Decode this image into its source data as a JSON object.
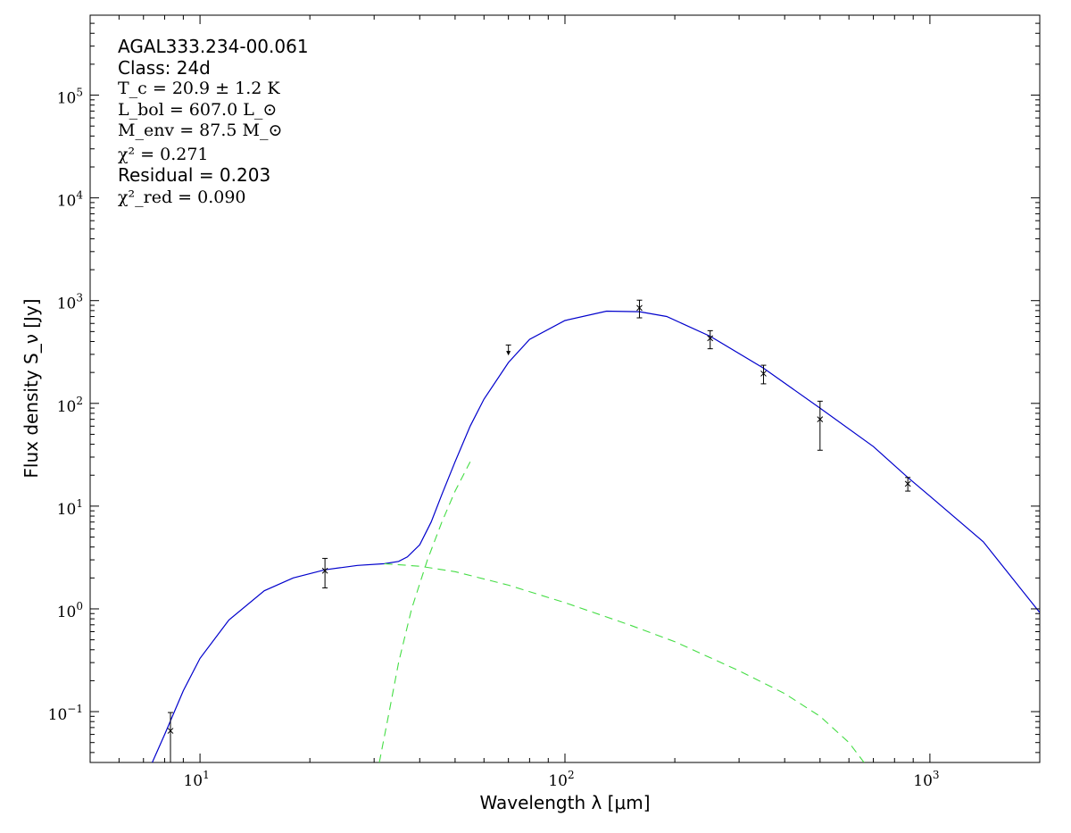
{
  "chart_data": {
    "type": "line",
    "title": "",
    "xlabel": "Wavelength λ [μm]",
    "ylabel": "Flux density S_ν [Jy]",
    "xscale": "log",
    "yscale": "log",
    "xlim": [
      5.0,
      2000.0
    ],
    "ylim": [
      0.032,
      600000
    ],
    "grid": false,
    "legend": "none",
    "x_ticks": [
      {
        "value": 10,
        "base": "10",
        "exp": "1"
      },
      {
        "value": 100,
        "base": "10",
        "exp": "2"
      },
      {
        "value": 1000,
        "base": "10",
        "exp": "3"
      }
    ],
    "y_ticks": [
      {
        "value": 0.1,
        "base": "10",
        "exp": "−1"
      },
      {
        "value": 1,
        "base": "10",
        "exp": "0"
      },
      {
        "value": 10,
        "base": "10",
        "exp": "1"
      },
      {
        "value": 100,
        "base": "10",
        "exp": "2"
      },
      {
        "value": 1000,
        "base": "10",
        "exp": "3"
      },
      {
        "value": 10000,
        "base": "10",
        "exp": "4"
      },
      {
        "value": 100000,
        "base": "10",
        "exp": "5"
      }
    ],
    "annotations": {
      "source": "AGAL333.234-00.061",
      "class_label": "Class: 24d",
      "tc": "T_c = 20.9 ± 1.2 K",
      "lbol": "L_bol = 607.0 L_⊙",
      "menv": "M_env = 87.5 M_⊙",
      "chi2": "χ² = 0.271",
      "residual": "Residual = 0.203",
      "chi2_red": "χ²_red = 0.090"
    },
    "colors": {
      "total_fit": "#0000cc",
      "components": "#44dd44",
      "points": "#000000"
    },
    "series": [
      {
        "role": "total",
        "style": "solid",
        "x": [
          7.4,
          8.0,
          9.0,
          10.0,
          12.0,
          15.0,
          18.0,
          22.0,
          27.0,
          32.0,
          35.0,
          37.0,
          40.0,
          43.0,
          46.0,
          50.0,
          55.0,
          60.0,
          70.0,
          80.0,
          100.0,
          130.0,
          160.0,
          190.0,
          250.0,
          350.0,
          500.0,
          700.0,
          870.0,
          1000.0,
          1400.0,
          2000.0
        ],
        "y": [
          0.032,
          0.06,
          0.16,
          0.33,
          0.78,
          1.5,
          2.0,
          2.4,
          2.65,
          2.75,
          2.9,
          3.2,
          4.2,
          7.0,
          13.0,
          27.0,
          60.0,
          110.0,
          250.0,
          420.0,
          640.0,
          790.0,
          780.0,
          700.0,
          450.0,
          220.0,
          90.0,
          38.0,
          19.0,
          12.5,
          4.5,
          0.92
        ]
      },
      {
        "role": "warm-component",
        "style": "dashed",
        "x": [
          32.0,
          40.0,
          50.0,
          70.0,
          100.0,
          150.0,
          200.0,
          300.0,
          400.0,
          500.0,
          600.0,
          660.0
        ],
        "y": [
          2.75,
          2.6,
          2.3,
          1.7,
          1.15,
          0.7,
          0.48,
          0.25,
          0.15,
          0.09,
          0.05,
          0.032
        ]
      },
      {
        "role": "cold-component",
        "style": "dashed",
        "x": [
          31.0,
          33.0,
          35.0,
          38.0,
          42.0,
          46.0,
          50.0,
          55.0
        ],
        "y": [
          0.032,
          0.1,
          0.3,
          1.0,
          3.0,
          7.0,
          14.0,
          27.0
        ]
      }
    ],
    "data_points": [
      {
        "x": 8.3,
        "y": 0.065,
        "ylow": 0.032,
        "yhigh": 0.098
      },
      {
        "x": 22.0,
        "y": 2.35,
        "ylow": 1.6,
        "yhigh": 3.1
      },
      {
        "x": 160.0,
        "y": 850.0,
        "ylow": 680.0,
        "yhigh": 1010.0
      },
      {
        "x": 250.0,
        "y": 430.0,
        "ylow": 340.0,
        "yhigh": 510.0
      },
      {
        "x": 350.0,
        "y": 195.0,
        "ylow": 155.0,
        "yhigh": 235.0
      },
      {
        "x": 500.0,
        "y": 70.0,
        "ylow": 35.0,
        "yhigh": 105.0
      },
      {
        "x": 870.0,
        "y": 16.5,
        "ylow": 14.0,
        "yhigh": 19.0
      }
    ],
    "upper_limits": [
      {
        "x": 70.0,
        "y": 370.0,
        "y_arrow": 305.0
      }
    ]
  }
}
